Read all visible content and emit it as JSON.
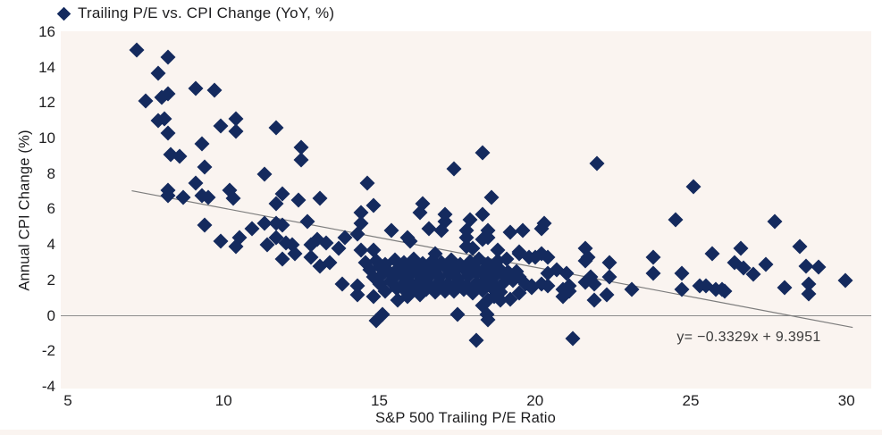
{
  "chart": {
    "legend_label": "Trailing P/E vs. CPI Change (YoY, %)"
  },
  "chart_data": {
    "type": "scatter",
    "title": "Trailing P/E vs. CPI Change (YoY, %)",
    "xlabel": "S&P 500 Trailing P/E Ratio",
    "ylabel": "Annual CPI Change (%)",
    "xlim": [
      5,
      30.8
    ],
    "ylim": [
      -4,
      16.1
    ],
    "x_ticks": [
      5,
      10,
      15,
      20,
      25,
      30
    ],
    "y_ticks": [
      16,
      14,
      12,
      10,
      8,
      6,
      4,
      2,
      0,
      -2,
      -4
    ],
    "grid": false,
    "legend_position": "top-left",
    "marker": "diamond",
    "marker_color": "#142a5e",
    "plot_bg_color": "#faf4f0",
    "zero_line": {
      "show": true,
      "color": "#8c8c8c"
    },
    "trendline": {
      "slope": -0.3329,
      "intercept": 9.3951,
      "x_start": 7.05,
      "x_end": 30.2,
      "color": "#7d7d7d",
      "label": "y= −0.3329x + 9.3951"
    },
    "points": [
      [
        7.2,
        15.0
      ],
      [
        8.2,
        14.6
      ],
      [
        7.9,
        13.7
      ],
      [
        9.1,
        12.8
      ],
      [
        9.7,
        12.7
      ],
      [
        7.5,
        12.1
      ],
      [
        8.0,
        12.3
      ],
      [
        8.2,
        12.5
      ],
      [
        7.9,
        11.0
      ],
      [
        8.1,
        11.1
      ],
      [
        9.9,
        10.7
      ],
      [
        10.4,
        11.1
      ],
      [
        10.4,
        10.4
      ],
      [
        11.7,
        10.6
      ],
      [
        8.2,
        10.3
      ],
      [
        9.3,
        9.7
      ],
      [
        12.5,
        9.5
      ],
      [
        12.5,
        8.8
      ],
      [
        8.3,
        9.1
      ],
      [
        8.6,
        9.0
      ],
      [
        9.4,
        8.4
      ],
      [
        11.3,
        8.0
      ],
      [
        9.1,
        7.5
      ],
      [
        8.2,
        7.1
      ],
      [
        8.2,
        6.8
      ],
      [
        8.7,
        6.7
      ],
      [
        9.3,
        6.8
      ],
      [
        9.5,
        6.7
      ],
      [
        10.2,
        7.1
      ],
      [
        10.3,
        6.6
      ],
      [
        11.9,
        6.9
      ],
      [
        11.7,
        6.3
      ],
      [
        12.4,
        6.5
      ],
      [
        13.1,
        6.6
      ],
      [
        18.3,
        9.2
      ],
      [
        17.4,
        8.3
      ],
      [
        22.0,
        8.6
      ],
      [
        25.1,
        7.3
      ],
      [
        14.6,
        7.5
      ],
      [
        18.6,
        6.7
      ],
      [
        14.8,
        6.2
      ],
      [
        16.4,
        6.3
      ],
      [
        9.4,
        5.1
      ],
      [
        9.9,
        4.2
      ],
      [
        10.4,
        3.9
      ],
      [
        10.5,
        4.4
      ],
      [
        10.9,
        4.9
      ],
      [
        11.3,
        5.2
      ],
      [
        11.4,
        4.0
      ],
      [
        11.7,
        4.4
      ],
      [
        11.7,
        5.2
      ],
      [
        11.9,
        3.2
      ],
      [
        11.9,
        5.1
      ],
      [
        12.0,
        4.1
      ],
      [
        12.2,
        4.0
      ],
      [
        12.3,
        3.5
      ],
      [
        12.7,
        5.3
      ],
      [
        12.8,
        4.0
      ],
      [
        12.8,
        3.3
      ],
      [
        13.0,
        4.3
      ],
      [
        13.1,
        2.8
      ],
      [
        13.3,
        4.1
      ],
      [
        13.4,
        3.0
      ],
      [
        14.4,
        5.8
      ],
      [
        16.3,
        5.8
      ],
      [
        17.1,
        5.7
      ],
      [
        18.3,
        5.7
      ],
      [
        14.4,
        5.2
      ],
      [
        17.1,
        5.3
      ],
      [
        17.9,
        5.4
      ],
      [
        20.3,
        5.2
      ],
      [
        15.4,
        4.8
      ],
      [
        16.6,
        4.9
      ],
      [
        17.0,
        4.8
      ],
      [
        17.8,
        4.8
      ],
      [
        18.5,
        4.8
      ],
      [
        19.2,
        4.7
      ],
      [
        19.6,
        4.8
      ],
      [
        20.2,
        4.9
      ],
      [
        15.9,
        4.4
      ],
      [
        16.0,
        4.2
      ],
      [
        13.9,
        4.4
      ],
      [
        14.3,
        4.6
      ],
      [
        17.8,
        4.4
      ],
      [
        17.8,
        3.9
      ],
      [
        18.3,
        4.3
      ],
      [
        18.5,
        4.4
      ],
      [
        13.7,
        3.8
      ],
      [
        14.4,
        3.7
      ],
      [
        14.8,
        3.7
      ],
      [
        16.8,
        3.5
      ],
      [
        18.0,
        3.8
      ],
      [
        18.8,
        3.7
      ],
      [
        19.5,
        3.5
      ],
      [
        19.8,
        3.3
      ],
      [
        20.4,
        3.3
      ],
      [
        21.6,
        3.8
      ],
      [
        21.7,
        3.3
      ],
      [
        22.4,
        3.0
      ],
      [
        19.5,
        3.6
      ],
      [
        20.2,
        3.5
      ],
      [
        21.6,
        3.1
      ],
      [
        14.55,
        3.0
      ],
      [
        14.9,
        3.1
      ],
      [
        15.2,
        2.9
      ],
      [
        15.5,
        3.15
      ],
      [
        15.8,
        3.0
      ],
      [
        16.1,
        3.2
      ],
      [
        16.4,
        2.95
      ],
      [
        16.7,
        3.1
      ],
      [
        17.0,
        3.0
      ],
      [
        17.3,
        3.15
      ],
      [
        17.6,
        2.9
      ],
      [
        17.9,
        3.05
      ],
      [
        18.2,
        3.2
      ],
      [
        18.5,
        2.95
      ],
      [
        18.8,
        3.1
      ],
      [
        19.1,
        3.2
      ],
      [
        14.7,
        2.6
      ],
      [
        15.0,
        2.75
      ],
      [
        15.3,
        2.5
      ],
      [
        15.6,
        2.65
      ],
      [
        15.9,
        2.8
      ],
      [
        16.2,
        2.55
      ],
      [
        16.5,
        2.7
      ],
      [
        16.8,
        2.6
      ],
      [
        17.1,
        2.75
      ],
      [
        17.4,
        2.5
      ],
      [
        17.7,
        2.65
      ],
      [
        18.0,
        2.8
      ],
      [
        18.3,
        2.55
      ],
      [
        18.6,
        2.7
      ],
      [
        18.9,
        2.6
      ],
      [
        19.15,
        2.45
      ],
      [
        14.8,
        2.2
      ],
      [
        15.1,
        2.35
      ],
      [
        15.45,
        2.1
      ],
      [
        15.75,
        2.25
      ],
      [
        16.05,
        2.4
      ],
      [
        16.35,
        2.15
      ],
      [
        16.65,
        2.3
      ],
      [
        16.95,
        2.2
      ],
      [
        17.25,
        2.35
      ],
      [
        17.55,
        2.1
      ],
      [
        17.85,
        2.25
      ],
      [
        18.15,
        2.4
      ],
      [
        18.45,
        2.15
      ],
      [
        18.75,
        2.3
      ],
      [
        19.05,
        2.2
      ],
      [
        15.0,
        1.8
      ],
      [
        15.35,
        1.95
      ],
      [
        15.7,
        1.7
      ],
      [
        16.0,
        1.85
      ],
      [
        16.3,
        2.0
      ],
      [
        16.6,
        1.75
      ],
      [
        16.9,
        1.9
      ],
      [
        17.2,
        1.8
      ],
      [
        17.5,
        1.95
      ],
      [
        17.8,
        1.7
      ],
      [
        18.1,
        1.85
      ],
      [
        18.4,
        2.0
      ],
      [
        18.7,
        1.75
      ],
      [
        19.0,
        1.9
      ],
      [
        15.2,
        1.4
      ],
      [
        15.55,
        1.55
      ],
      [
        15.9,
        1.3
      ],
      [
        16.2,
        1.45
      ],
      [
        16.5,
        1.6
      ],
      [
        16.8,
        1.35
      ],
      [
        17.1,
        1.5
      ],
      [
        17.4,
        1.4
      ],
      [
        17.7,
        1.55
      ],
      [
        18.0,
        1.3
      ],
      [
        18.3,
        1.45
      ],
      [
        18.6,
        1.6
      ],
      [
        18.9,
        1.35
      ],
      [
        20.0,
        3.3
      ],
      [
        20.4,
        2.4
      ],
      [
        20.7,
        2.6
      ],
      [
        21.0,
        2.4
      ],
      [
        19.1,
        2.4
      ],
      [
        19.4,
        2.5
      ],
      [
        19.7,
        1.8
      ],
      [
        19.9,
        1.7
      ],
      [
        20.4,
        1.7
      ],
      [
        21.1,
        1.4
      ],
      [
        20.9,
        1.1
      ],
      [
        21.8,
        2.2
      ],
      [
        22.4,
        2.2
      ],
      [
        21.9,
        1.8
      ],
      [
        19.3,
        2.0
      ],
      [
        19.5,
        2.2
      ],
      [
        13.8,
        1.8
      ],
      [
        14.3,
        1.2
      ],
      [
        14.3,
        1.7
      ],
      [
        14.8,
        1.1
      ],
      [
        15.6,
        0.9
      ],
      [
        15.9,
        1.1
      ],
      [
        16.3,
        1.2
      ],
      [
        16.5,
        1.5
      ],
      [
        17.1,
        1.4
      ],
      [
        17.7,
        1.5
      ],
      [
        18.0,
        1.4
      ],
      [
        18.5,
        0.9
      ],
      [
        18.7,
        1.1
      ],
      [
        18.9,
        0.9
      ],
      [
        19.2,
        0.95
      ],
      [
        19.5,
        1.3
      ],
      [
        19.9,
        1.6
      ],
      [
        20.2,
        1.8
      ],
      [
        20.9,
        1.5
      ],
      [
        21.1,
        1.7
      ],
      [
        21.6,
        1.9
      ],
      [
        21.9,
        0.9
      ],
      [
        22.3,
        1.2
      ],
      [
        14.9,
        -0.3
      ],
      [
        15.1,
        0.1
      ],
      [
        17.5,
        0.1
      ],
      [
        18.3,
        0.6
      ],
      [
        18.45,
        0.1
      ],
      [
        18.5,
        -0.25
      ],
      [
        18.1,
        -1.4
      ],
      [
        21.2,
        -1.3
      ],
      [
        23.1,
        1.5
      ],
      [
        23.8,
        3.3
      ],
      [
        23.8,
        2.4
      ],
      [
        24.5,
        5.4
      ],
      [
        24.7,
        2.4
      ],
      [
        24.7,
        1.5
      ],
      [
        25.3,
        1.7
      ],
      [
        25.5,
        1.7
      ],
      [
        25.8,
        1.5
      ],
      [
        26.0,
        1.5
      ],
      [
        26.1,
        1.4
      ],
      [
        25.7,
        3.5
      ],
      [
        26.6,
        3.8
      ],
      [
        26.7,
        2.7
      ],
      [
        26.4,
        3.0
      ],
      [
        27.0,
        2.35
      ],
      [
        27.4,
        2.9
      ],
      [
        27.7,
        5.3
      ],
      [
        28.5,
        3.9
      ],
      [
        28.7,
        2.8
      ],
      [
        29.1,
        2.75
      ],
      [
        28.0,
        1.6
      ],
      [
        28.8,
        1.8
      ],
      [
        28.8,
        1.25
      ],
      [
        29.95,
        2.0
      ]
    ]
  }
}
